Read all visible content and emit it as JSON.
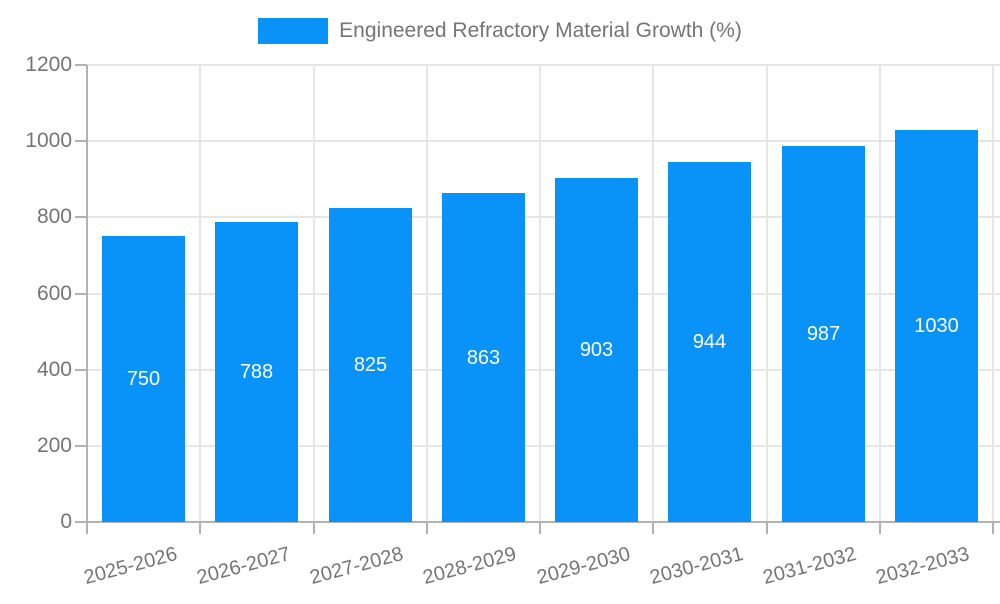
{
  "legend": {
    "label": "Engineered Refractory Material Growth (%)"
  },
  "chart_data": {
    "type": "bar",
    "title": "Engineered Refractory Material Growth (%)",
    "categories": [
      "2025-2026",
      "2026-2027",
      "2027-2028",
      "2028-2029",
      "2029-2030",
      "2030-2031",
      "2031-2032",
      "2032-2033"
    ],
    "values": [
      750,
      788,
      825,
      863,
      903,
      944,
      987,
      1030
    ],
    "value_labels": [
      "750",
      "788",
      "825",
      "863",
      "903",
      "944",
      "987",
      "1030"
    ],
    "xlabel": "",
    "ylabel": "",
    "ylim": [
      0,
      1200
    ],
    "yticks": [
      0,
      200,
      400,
      600,
      800,
      1000,
      1200
    ],
    "ytick_labels": [
      "0",
      "200",
      "400",
      "600",
      "800",
      "1000",
      "1200"
    ],
    "grid": true,
    "legend_position": "top-center",
    "colors": {
      "bar": "#0992f8",
      "bar_value_text": "#ffffff",
      "axis_line": "#b2b2b2",
      "gridline": "#e6e6e6",
      "tick_text": "#757575",
      "legend_text": "#757575",
      "background": "#ffffff"
    }
  }
}
